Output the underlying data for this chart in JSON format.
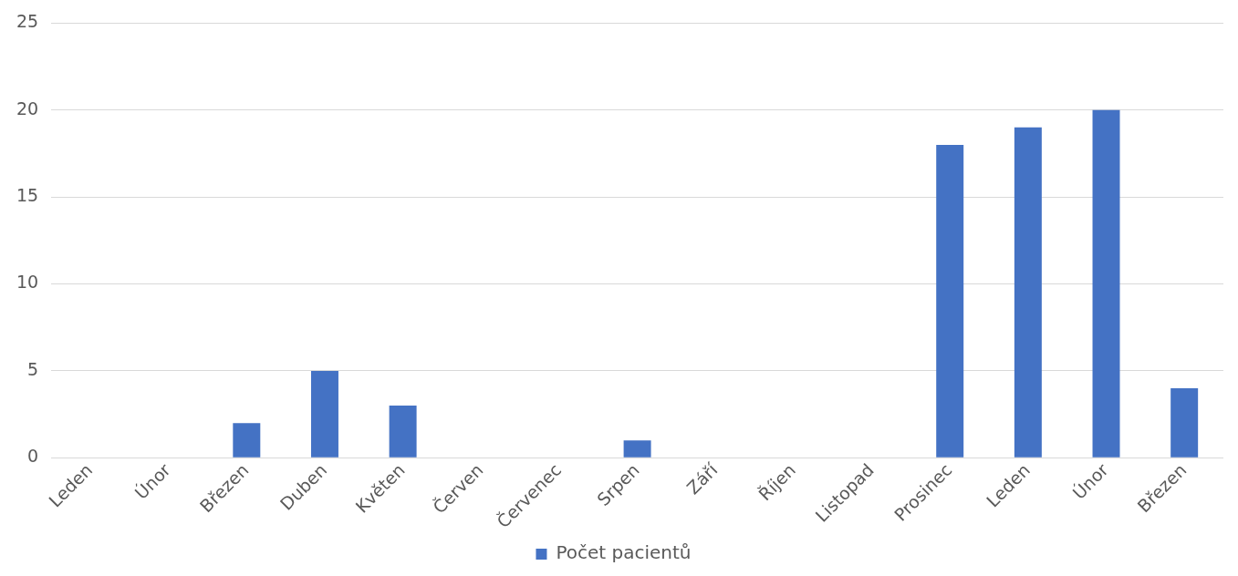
{
  "chart_data": {
    "type": "bar",
    "categories": [
      "Leden",
      "Únor",
      "Březen",
      "Duben",
      "Květen",
      "Červen",
      "Červenec",
      "Srpen",
      "Září",
      "Říjen",
      "Listopad",
      "Prosinec",
      "Leden",
      "Únor",
      "Březen"
    ],
    "series": [
      {
        "name": "Počet pacientů",
        "color": "#4472c4",
        "values": [
          0,
          0,
          2,
          5,
          3,
          0,
          0,
          1,
          0,
          0,
          0,
          18,
          19,
          20,
          4
        ]
      }
    ],
    "ylim": [
      0,
      25
    ],
    "yticks": [
      0,
      5,
      10,
      15,
      20,
      25
    ],
    "grid": "y",
    "legend": "bottom"
  }
}
